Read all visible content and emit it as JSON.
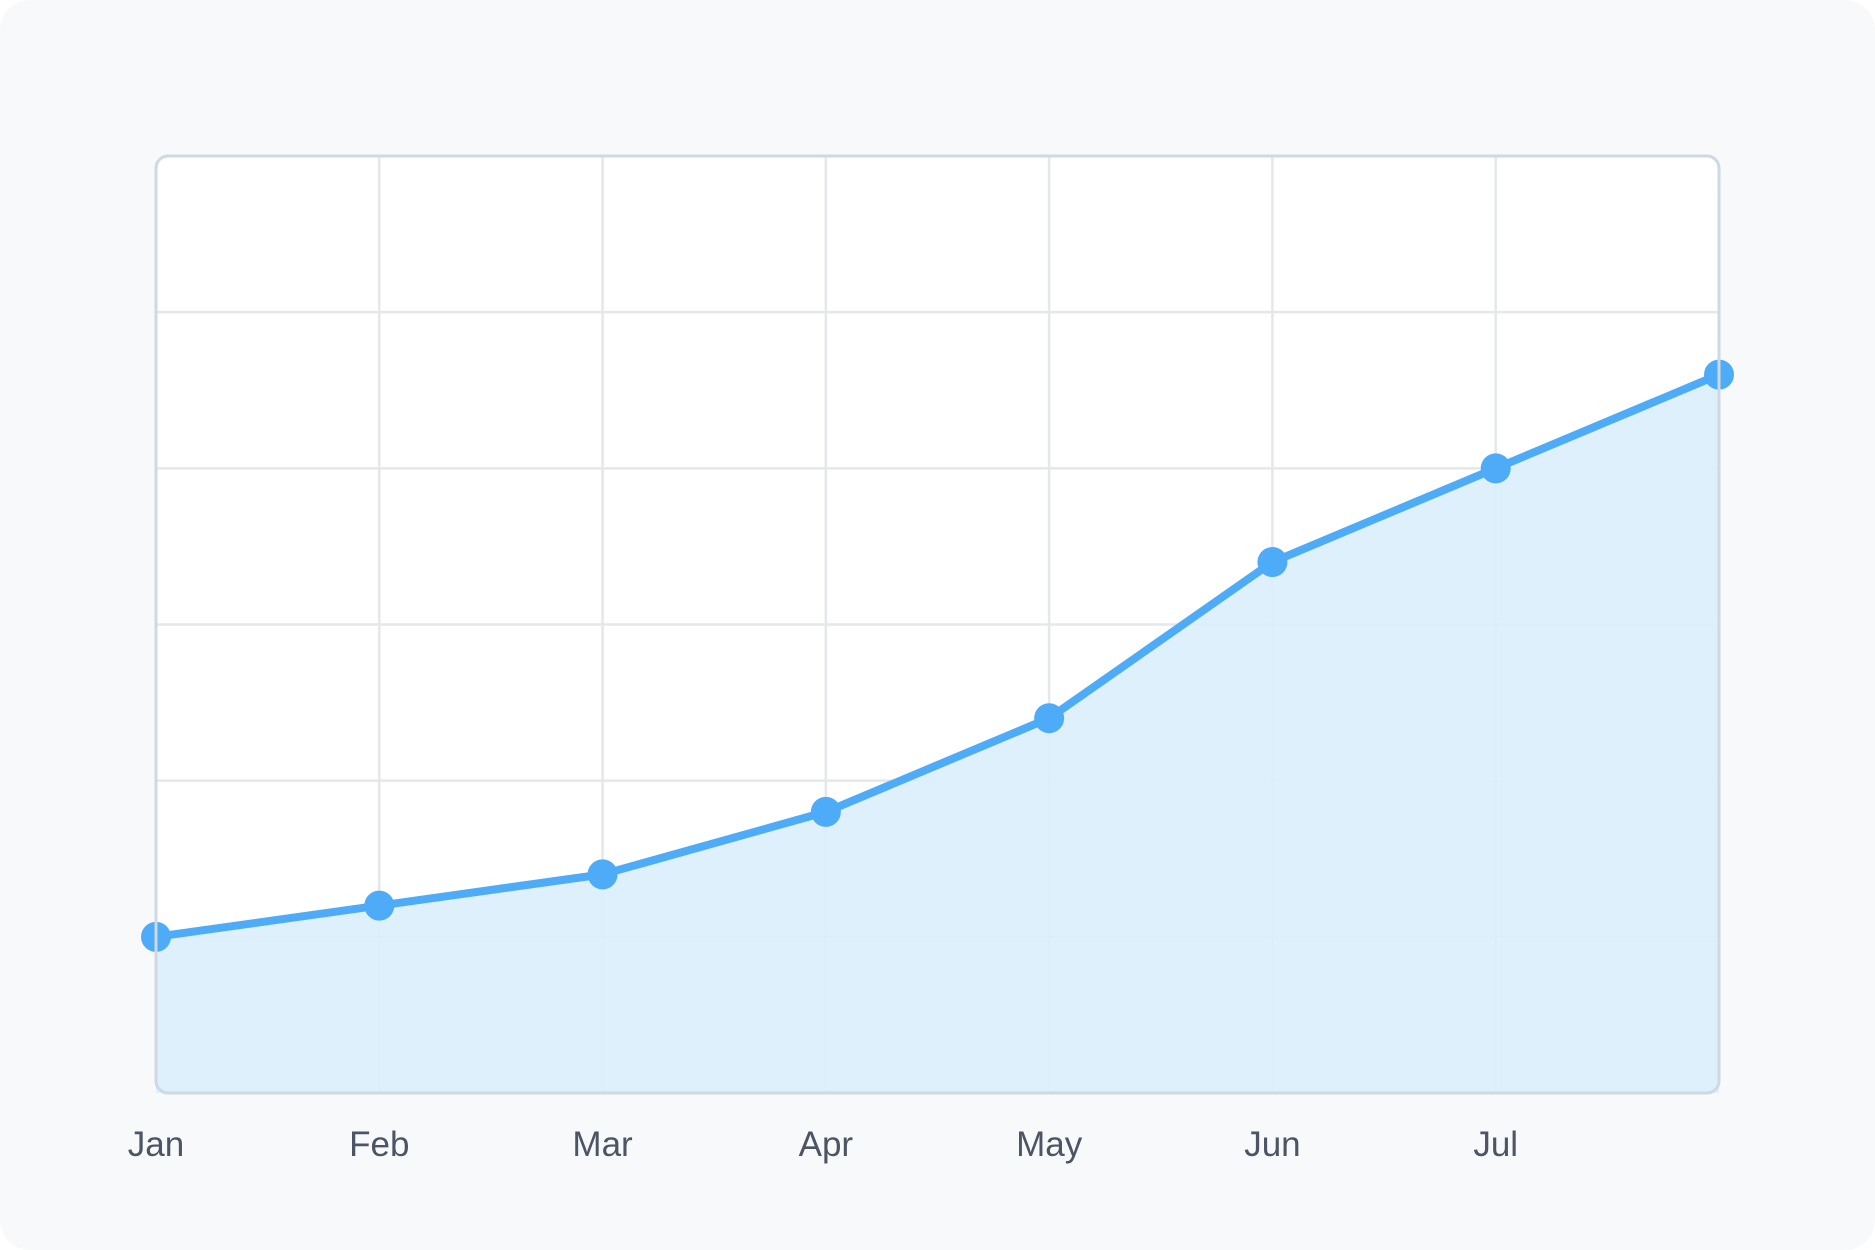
{
  "chart_data": {
    "type": "area",
    "categories": [
      "Jan",
      "Feb",
      "Mar",
      "Apr",
      "May",
      "Jun",
      "Jul",
      ""
    ],
    "values": [
      10,
      12,
      14,
      18,
      24,
      34,
      40,
      46
    ],
    "title": "",
    "xlabel": "",
    "ylabel": "",
    "ylim": [
      0,
      60
    ],
    "grid": true,
    "legend": "none",
    "colors": {
      "line": "#4dabf7",
      "fill": "#dbeefd",
      "grid": "#e5e7eb",
      "frame": "#cfd8e3",
      "background": "#ffffff",
      "card": "#f8f9fb",
      "tick_text": "#4b5563"
    }
  }
}
